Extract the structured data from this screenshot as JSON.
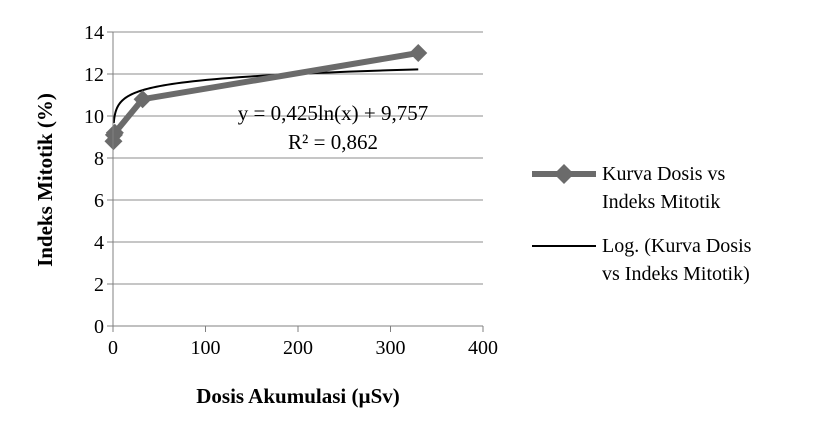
{
  "chart_data": {
    "type": "scatter",
    "xlabel": "Dosis Akumulasi (µSv)",
    "ylabel": "Indeks Mitotik (%)",
    "xlim": [
      0,
      400
    ],
    "ylim": [
      0,
      14
    ],
    "x_ticks": [
      "0",
      "100",
      "200",
      "300",
      "400"
    ],
    "y_ticks": [
      "0",
      "2",
      "4",
      "6",
      "8",
      "10",
      "12",
      "14"
    ],
    "grid": "horizontal",
    "legend_position": "right",
    "series": [
      {
        "name": "Kurva Dosis vs Indeks Mitotik",
        "style": "line-with-diamond-markers",
        "color": "#6b6b6b",
        "x": [
          0.5,
          1,
          2,
          32,
          330
        ],
        "y": [
          8.8,
          9.1,
          9.2,
          10.8,
          13.0
        ]
      },
      {
        "name": "Log. (Kurva Dosis vs Indeks Mitotik)",
        "style": "trendline",
        "color": "#000000",
        "a": 0.425,
        "b": 9.757
      }
    ],
    "annotations": {
      "equation": "y = 0,425ln(x) + 9,757",
      "r_squared": "R² = 0,862"
    },
    "legend": [
      {
        "line1": "Kurva Dosis vs",
        "line2": "Indeks Mitotik"
      },
      {
        "line1": "Log. (Kurva Dosis",
        "line2": "vs Indeks Mitotik)"
      }
    ]
  }
}
